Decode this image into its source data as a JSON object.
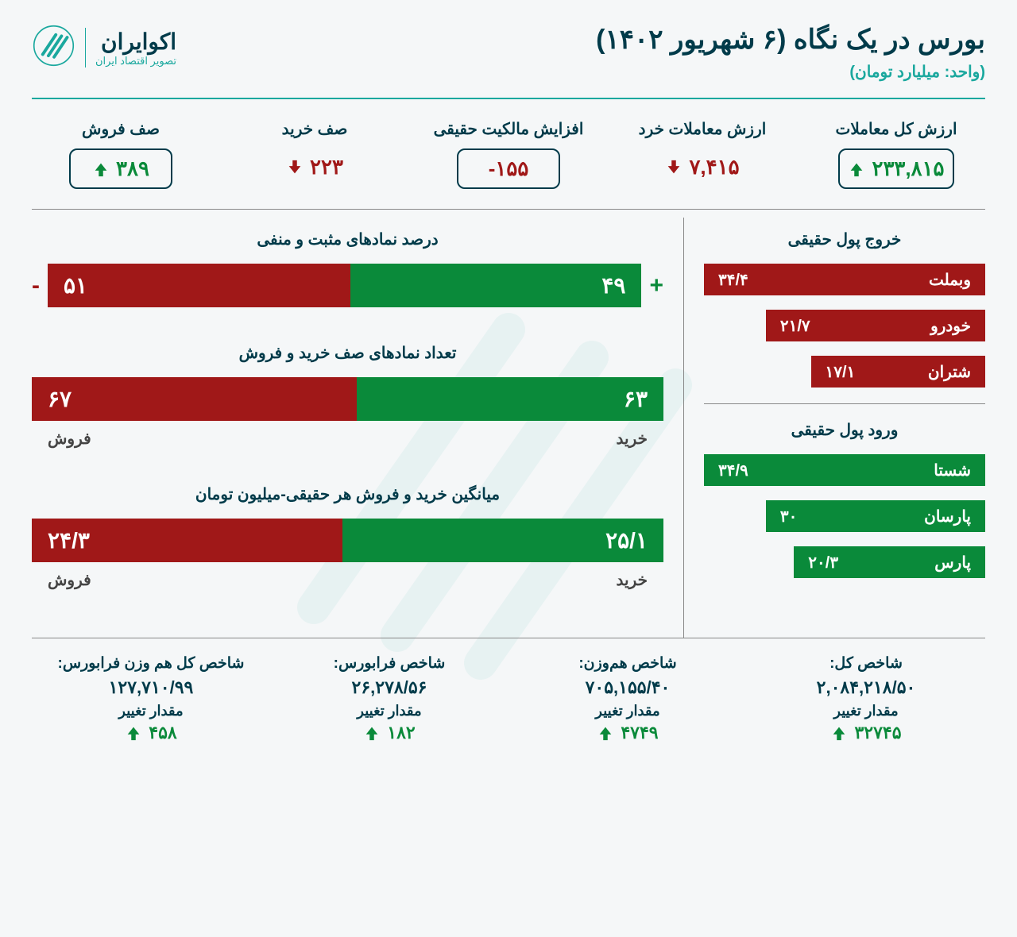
{
  "header": {
    "title": "بورس در یک نگاه (۶ شهریور ۱۴۰۲)",
    "subtitle": "(واحد: میلیارد تومان)",
    "logo_name": "اکوایران",
    "logo_tag": "تصویر اقتصاد ایران"
  },
  "colors": {
    "green": "#0a8a3a",
    "red": "#a01818",
    "teal": "#1aa89e",
    "navy": "#003b4a",
    "bg": "#f5f7f8"
  },
  "metrics": [
    {
      "label": "ارزش کل معاملات",
      "value": "۲۳۳,۸۱۵",
      "direction": "up",
      "color": "green",
      "boxed": true
    },
    {
      "label": "ارزش معاملات خرد",
      "value": "۷,۴۱۵",
      "direction": "down",
      "color": "red",
      "boxed": false
    },
    {
      "label": "افزایش مالکیت حقیقی",
      "value": "۱۵۵-",
      "direction": "none",
      "color": "red",
      "boxed": true
    },
    {
      "label": "صف خرید",
      "value": "۲۲۳",
      "direction": "down",
      "color": "red",
      "boxed": false
    },
    {
      "label": "صف فروش",
      "value": "۳۸۹",
      "direction": "up",
      "color": "green",
      "boxed": true
    }
  ],
  "outflow": {
    "title": "خروج پول حقیقی",
    "items": [
      {
        "name": "وبملت",
        "value": "۳۴/۴",
        "width": "full"
      },
      {
        "name": "خودرو",
        "value": "۲۱/۷",
        "width": "w80"
      },
      {
        "name": "شتران",
        "value": "۱۷/۱",
        "width": "w65"
      }
    ]
  },
  "inflow": {
    "title": "ورود پول حقیقی",
    "items": [
      {
        "name": "شستا",
        "value": "۳۴/۹",
        "width": "full"
      },
      {
        "name": "پارسان",
        "value": "۳۰",
        "width": "w80"
      },
      {
        "name": "پارس",
        "value": "۲۰/۳",
        "width": "w70"
      }
    ]
  },
  "chart1": {
    "title": "درصد نمادهای مثبت و منفی",
    "pos_sign": "+",
    "neg_sign": "-",
    "pos_value": "۴۹",
    "pos_pct": 49,
    "neg_value": "۵۱",
    "neg_pct": 51
  },
  "chart2": {
    "title": "تعداد نمادهای صف خرید و فروش",
    "buy_label": "خرید",
    "sell_label": "فروش",
    "buy_value": "۶۳",
    "buy_pct": 48.5,
    "sell_value": "۶۷",
    "sell_pct": 51.5
  },
  "chart3": {
    "title": "میانگین خرید و فروش هر حقیقی-میلیون تومان",
    "buy_label": "خرید",
    "sell_label": "فروش",
    "buy_value": "۲۵/۱",
    "buy_pct": 50.8,
    "sell_value": "۲۴/۳",
    "sell_pct": 49.2
  },
  "indices": [
    {
      "label": "شاخص کل:",
      "value": "۲,۰۸۴,۲۱۸/۵۰",
      "change_label": "مقدار تغییر",
      "change": "۳۲۷۴۵",
      "direction": "up",
      "color": "green"
    },
    {
      "label": "شاخص هم‌وزن:",
      "value": "۷۰۵,۱۵۵/۴۰",
      "change_label": "مقدار تغییر",
      "change": "۴۷۴۹",
      "direction": "up",
      "color": "green"
    },
    {
      "label": "شاخص فرابورس:",
      "value": "۲۶,۲۷۸/۵۶",
      "change_label": "مقدار تغییر",
      "change": "۱۸۲",
      "direction": "up",
      "color": "green"
    },
    {
      "label": "شاخص کل هم وزن فرابورس:",
      "value": "۱۲۷,۷۱۰/۹۹",
      "change_label": "مقدار تغییر",
      "change": "۴۵۸",
      "direction": "up",
      "color": "green"
    }
  ]
}
